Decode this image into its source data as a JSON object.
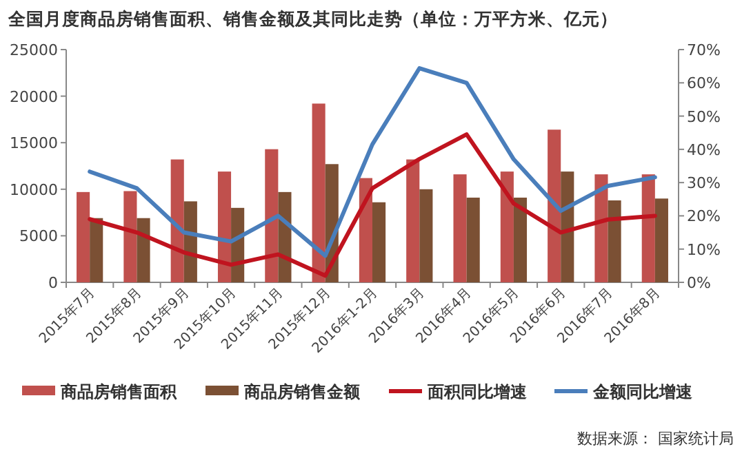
{
  "chart_data": {
    "type": "bar",
    "title": "全国月度商品房销售面积、销售金额及其同比走势（单位：万平方米、亿元）",
    "categories": [
      "2015年7月",
      "2015年8月",
      "2015年9月",
      "2015年10月",
      "2015年11月",
      "2015年12月",
      "2016年1-2月",
      "2016年3月",
      "2016年4月",
      "2016年5月",
      "2016年6月",
      "2016年7月",
      "2016年8月"
    ],
    "series": [
      {
        "name": "商品房销售面积",
        "color": "#c0504d",
        "values": [
          9700,
          9800,
          13200,
          11900,
          14300,
          19200,
          11200,
          13200,
          11600,
          11900,
          16400,
          11600,
          11600
        ]
      },
      {
        "name": "商品房销售金额",
        "color": "#7b5034",
        "values": [
          6900,
          6900,
          8700,
          8000,
          9700,
          12700,
          8600,
          10000,
          9100,
          9100,
          11900,
          8800,
          9000
        ]
      },
      {
        "name": "面积同比增速",
        "type": "line",
        "axis": "y2",
        "color": "#c0141f",
        "values": [
          19,
          15,
          9,
          5.3,
          8.4,
          2,
          28.3,
          37.1,
          44.5,
          23.7,
          15,
          18.9,
          20
        ]
      },
      {
        "name": "金额同比增速",
        "type": "line",
        "axis": "y2",
        "color": "#4a7ebb",
        "values": [
          33.3,
          28.3,
          15,
          12.3,
          20,
          8,
          41.5,
          64.4,
          60,
          37,
          21.5,
          29,
          31.6
        ]
      }
    ],
    "ylim": [
      0,
      25000
    ],
    "yticks": [
      0,
      5000,
      10000,
      15000,
      20000,
      25000
    ],
    "y2lim": [
      0,
      70
    ],
    "y2ticks": [
      {
        "value": 0,
        "label": "0%"
      },
      {
        "value": 10,
        "label": "10%"
      },
      {
        "value": 20,
        "label": "20%"
      },
      {
        "value": 30,
        "label": "30%"
      },
      {
        "value": 40,
        "label": "40%"
      },
      {
        "value": 50,
        "label": "50%"
      },
      {
        "value": 60,
        "label": "60%"
      },
      {
        "value": 70,
        "label": "70%"
      }
    ],
    "grid": false,
    "legend": "bottom",
    "annotations": [
      "数据来源：  国家统计局"
    ]
  }
}
